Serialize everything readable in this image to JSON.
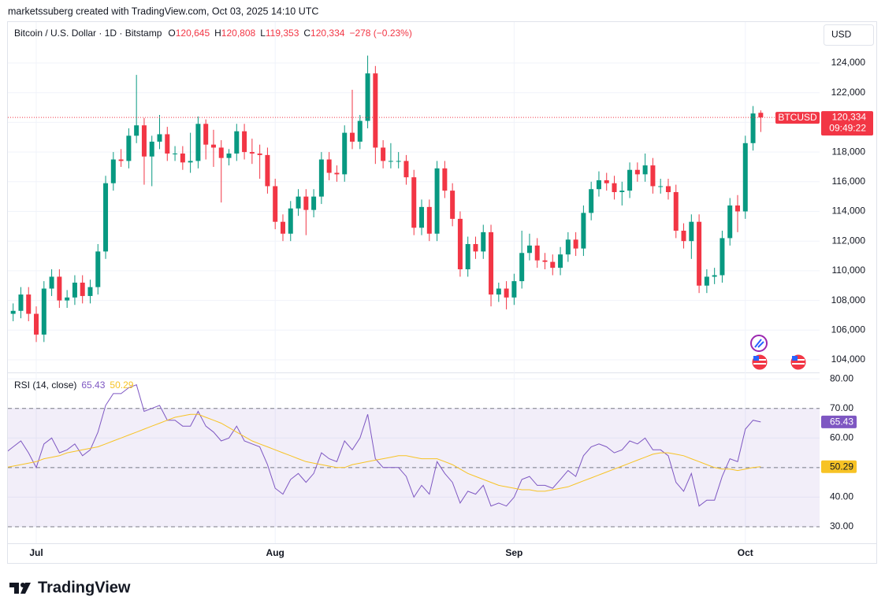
{
  "header": {
    "attribution": "marketssuberg created with TradingView.com, Oct 03, 2025 14:10 UTC",
    "currency": "USD"
  },
  "chart_data": [
    {
      "type": "candlestick",
      "title": "Bitcoin / U.S. Dollar · 1D · Bitstamp",
      "ohlc": [
        {
          "label": "O",
          "value": "120,645"
        },
        {
          "label": "H",
          "value": "120,808"
        },
        {
          "label": "L",
          "value": "119,353"
        },
        {
          "label": "C",
          "value": "120,334"
        }
      ],
      "change": "−278 (−0.23%)",
      "last_price": {
        "symbol": "BTCUSD",
        "value_label": "120,334",
        "countdown": "09:49:22"
      },
      "colors": {
        "up": "#089981",
        "down": "#f23645"
      },
      "categories": [
        null,
        null,
        null,
        null,
        "Jul",
        null,
        null,
        null,
        null,
        null,
        null,
        null,
        null,
        null,
        null,
        null,
        null,
        null,
        null,
        null,
        null,
        null,
        null,
        null,
        null,
        null,
        null,
        null,
        null,
        null,
        null,
        null,
        null,
        null,
        null,
        "Aug",
        null,
        null,
        null,
        null,
        null,
        null,
        null,
        null,
        null,
        null,
        null,
        null,
        null,
        null,
        null,
        null,
        null,
        null,
        null,
        null,
        null,
        null,
        null,
        null,
        null,
        null,
        null,
        null,
        null,
        null,
        "Sep",
        null,
        null,
        null,
        null,
        null,
        null,
        null,
        null,
        null,
        null,
        null,
        null,
        null,
        null,
        null,
        null,
        null,
        null,
        null,
        null,
        null,
        null,
        null,
        null,
        null,
        null,
        null,
        null,
        null,
        "Oct",
        null,
        null
      ],
      "open": [
        107000,
        107100,
        107300,
        108400,
        107100,
        105700,
        108800,
        109600,
        108000,
        108200,
        109200,
        108300,
        108900,
        111300,
        115900,
        117500,
        117400,
        119100,
        119800,
        117700,
        118700,
        119200,
        117900,
        117900,
        117300,
        117400,
        119900,
        118500,
        118300,
        117600,
        117900,
        119400,
        118000,
        117900,
        117800,
        115700,
        113300,
        112500,
        114200,
        115000,
        114100,
        115000,
        117500,
        116600,
        116500,
        119300,
        118700,
        120100,
        123300,
        118300,
        117400,
        117400,
        117400,
        116300,
        112900,
        114300,
        112500,
        116900,
        115400,
        113500,
        110100,
        111800,
        111300,
        112600,
        108400,
        108800,
        108200,
        109300,
        111200,
        111700,
        110700,
        110600,
        110200,
        111100,
        112100,
        111500,
        113900,
        115500,
        116100,
        115900,
        115300,
        115400,
        116800,
        116500,
        117100,
        115700,
        115700,
        115300,
        112700,
        112000,
        113300,
        109000,
        109600,
        109700,
        112200,
        114400,
        114000,
        118600,
        120645
      ],
      "high": [
        107600,
        107800,
        108900,
        108900,
        107600,
        109300,
        110100,
        110100,
        108700,
        109700,
        109700,
        109400,
        111800,
        116400,
        118000,
        118200,
        119600,
        123200,
        120300,
        119100,
        120500,
        119700,
        118400,
        118400,
        119300,
        120400,
        120200,
        119500,
        118800,
        118200,
        119900,
        119900,
        118900,
        118500,
        118300,
        116200,
        113800,
        114700,
        115500,
        115500,
        115500,
        118000,
        118000,
        117100,
        119800,
        122200,
        120500,
        124500,
        123800,
        118800,
        118600,
        118000,
        117800,
        116800,
        114800,
        114800,
        117400,
        117400,
        115900,
        114000,
        112300,
        112300,
        113100,
        113100,
        109200,
        109300,
        109800,
        112700,
        112500,
        112200,
        111200,
        111100,
        111600,
        112600,
        112600,
        114400,
        116000,
        116700,
        116600,
        116400,
        116000,
        117300,
        117300,
        117900,
        117600,
        116200,
        116200,
        115800,
        113200,
        113800,
        113800,
        110100,
        110200,
        112700,
        114900,
        115100,
        119100,
        121100,
        120808
      ],
      "low": [
        106500,
        106600,
        106800,
        106600,
        105200,
        105200,
        108300,
        107500,
        107500,
        107700,
        107800,
        107800,
        108400,
        110800,
        115400,
        117000,
        116900,
        118600,
        115800,
        115700,
        118200,
        117400,
        117400,
        116800,
        116600,
        116900,
        117500,
        117000,
        114600,
        117100,
        117400,
        117500,
        117200,
        116200,
        115200,
        112800,
        112000,
        112000,
        113700,
        112400,
        113600,
        114500,
        116100,
        116000,
        116000,
        118200,
        118200,
        119600,
        117200,
        116900,
        116900,
        116900,
        115800,
        112400,
        112400,
        112000,
        112000,
        114900,
        113000,
        109600,
        109600,
        110800,
        110800,
        107600,
        107900,
        107400,
        107700,
        108800,
        110700,
        110200,
        110100,
        109700,
        109700,
        110600,
        111000,
        111000,
        113400,
        115000,
        115400,
        114800,
        114400,
        114900,
        116000,
        116000,
        115200,
        115200,
        114800,
        112200,
        111500,
        110800,
        108500,
        108500,
        109100,
        109200,
        111700,
        112600,
        113500,
        118100,
        119353
      ],
      "close": [
        107100,
        107300,
        108400,
        107100,
        105700,
        108800,
        109600,
        108000,
        108200,
        109200,
        108300,
        108900,
        111300,
        115900,
        117500,
        117400,
        119100,
        119800,
        117700,
        118700,
        119200,
        117900,
        117900,
        117300,
        117400,
        119900,
        118500,
        118300,
        117600,
        117900,
        119400,
        118000,
        117900,
        117800,
        115700,
        113300,
        112500,
        114200,
        115000,
        114100,
        115000,
        117500,
        116600,
        116500,
        119300,
        118700,
        120100,
        123300,
        118300,
        117400,
        117400,
        117400,
        116300,
        112900,
        114300,
        112500,
        116900,
        115400,
        113500,
        110100,
        111800,
        111300,
        112600,
        108400,
        108800,
        108200,
        109300,
        111200,
        111700,
        110700,
        110600,
        110200,
        111100,
        112100,
        111500,
        113900,
        115500,
        116100,
        115900,
        115300,
        115400,
        116800,
        116500,
        117100,
        115700,
        115700,
        115300,
        112700,
        112000,
        113300,
        109000,
        109600,
        109700,
        112200,
        114400,
        114000,
        118600,
        120600,
        120334
      ],
      "ylim": [
        103150,
        126760
      ],
      "yticks": [
        {
          "value": 104000,
          "label": "104,000"
        },
        {
          "value": 106000,
          "label": "106,000"
        },
        {
          "value": 108000,
          "label": "108,000"
        },
        {
          "value": 110000,
          "label": "110,000"
        },
        {
          "value": 112000,
          "label": "112,000"
        },
        {
          "value": 114000,
          "label": "114,000"
        },
        {
          "value": 116000,
          "label": "116,000"
        },
        {
          "value": 118000,
          "label": "118,000"
        },
        {
          "value": 120000,
          "label": "120,000"
        },
        {
          "value": 122000,
          "label": "122,000"
        },
        {
          "value": 124000,
          "label": "124,000"
        }
      ],
      "grid": true
    },
    {
      "type": "line",
      "title": "RSI (14, close)",
      "series": [
        {
          "color": "#7e57c2",
          "value_label": "65.43",
          "values": [
            55,
            57,
            59,
            55,
            50,
            58,
            60,
            55,
            56,
            58,
            54,
            56,
            62,
            71,
            75,
            75,
            77,
            78,
            69,
            70,
            71,
            66,
            66,
            64,
            64,
            69,
            64,
            62,
            59,
            60,
            64,
            59,
            58,
            57,
            51,
            43,
            41,
            46,
            48,
            45,
            48,
            55,
            53,
            52,
            59,
            56,
            60,
            68,
            53,
            50,
            50,
            50,
            47,
            40,
            44,
            41,
            52,
            48,
            45,
            38,
            42,
            41,
            44,
            37,
            38,
            37,
            40,
            46,
            47,
            44,
            44,
            43,
            46,
            49,
            47,
            54,
            57,
            58,
            57,
            55,
            56,
            59,
            58,
            60,
            56,
            56,
            54,
            45,
            42,
            48,
            37,
            39,
            39,
            47,
            53,
            52,
            63,
            66,
            65.43
          ]
        },
        {
          "color": "#f7c325",
          "value_label": "50.29",
          "values": [
            50,
            50.5,
            51,
            51.5,
            52,
            53,
            53.5,
            54,
            55,
            55.5,
            56,
            56.5,
            57,
            58,
            59,
            60,
            61,
            62,
            63,
            64,
            65,
            66,
            67,
            67.5,
            68,
            68,
            67,
            66,
            65,
            63.5,
            62,
            60.5,
            59,
            58,
            57,
            56,
            55,
            54,
            53,
            52,
            51.5,
            51,
            50.5,
            50,
            50,
            51,
            51.5,
            52,
            52.5,
            53,
            53.5,
            54,
            54,
            53.5,
            53,
            53,
            53,
            52,
            51,
            49.5,
            48,
            47,
            46,
            45,
            44,
            43.5,
            43,
            42.5,
            42.5,
            42,
            42,
            42.5,
            43,
            43.5,
            44.5,
            45.5,
            46.5,
            47.5,
            48.5,
            49.5,
            50.5,
            51.5,
            52.5,
            53.5,
            54.5,
            55,
            55,
            54.5,
            54,
            53,
            52,
            51,
            50,
            49.5,
            49.5,
            49,
            49.5,
            50,
            50.29
          ]
        }
      ],
      "hlines": [
        70,
        50,
        30
      ],
      "ylim": [
        24.4,
        81.9
      ],
      "yticks": [
        {
          "value": 30,
          "label": "30.00"
        },
        {
          "value": 40,
          "label": "40.00"
        },
        {
          "value": 50,
          "label": "50.00"
        },
        {
          "value": 60,
          "label": "60.00"
        },
        {
          "value": 70,
          "label": "70.00"
        },
        {
          "value": 80,
          "label": "80.00"
        }
      ],
      "grid": true
    }
  ],
  "footer": {
    "logo": "TradingView"
  }
}
